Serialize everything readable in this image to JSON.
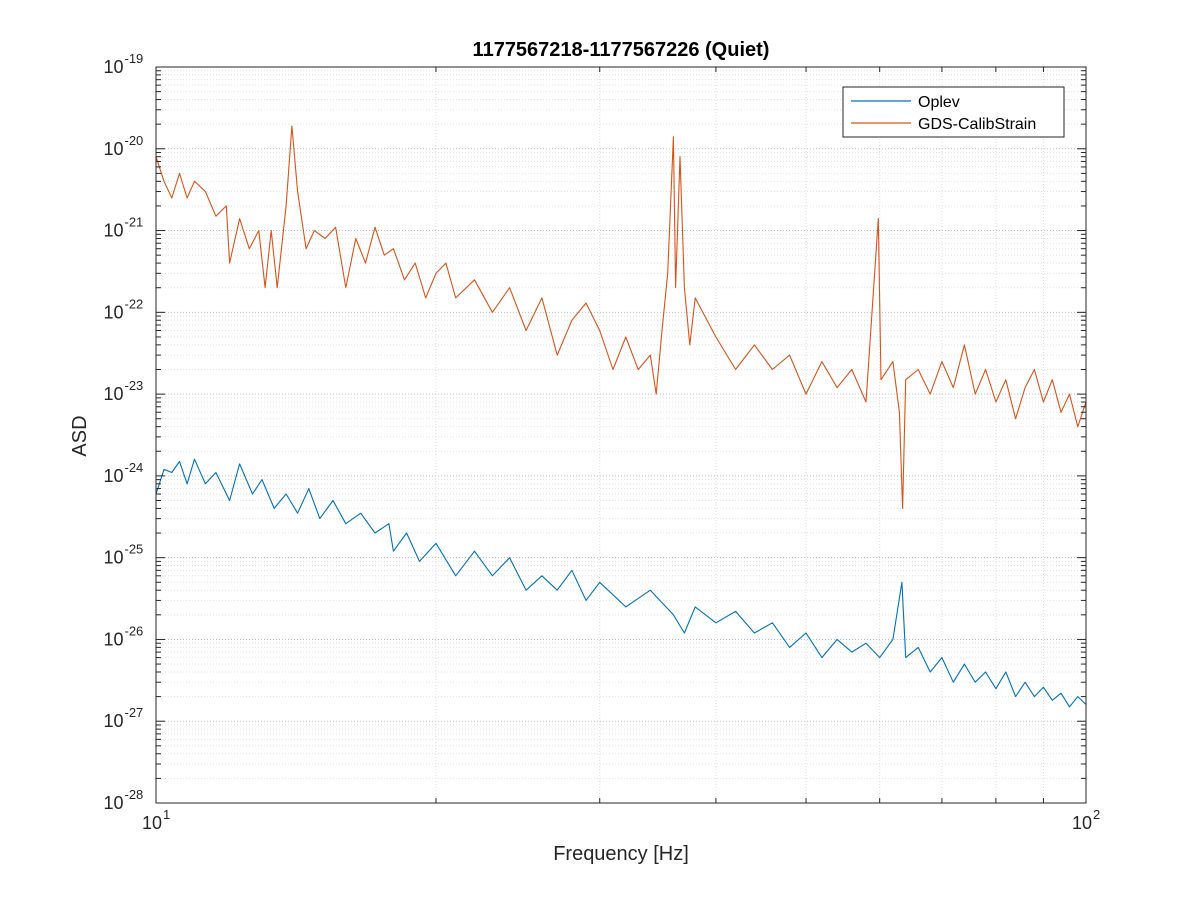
{
  "chart_data": {
    "type": "line",
    "title": "1177567218-1177567226 (Quiet)",
    "xlabel": "Frequency [Hz]",
    "ylabel": "ASD",
    "xscale": "log",
    "yscale": "log",
    "xlim": [
      10,
      100
    ],
    "ylim": [
      1e-28,
      1e-19
    ],
    "grid": true,
    "minor_grid": true,
    "legend_position": "top-right",
    "x_tick_labels": [
      {
        "base": "10",
        "exp": "1",
        "value": 10
      },
      {
        "base": "10",
        "exp": "2",
        "value": 100
      }
    ],
    "y_tick_labels": [
      {
        "base": "10",
        "exp": "-19",
        "value": -19
      },
      {
        "base": "10",
        "exp": "-20",
        "value": -20
      },
      {
        "base": "10",
        "exp": "-21",
        "value": -21
      },
      {
        "base": "10",
        "exp": "-22",
        "value": -22
      },
      {
        "base": "10",
        "exp": "-23",
        "value": -23
      },
      {
        "base": "10",
        "exp": "-24",
        "value": -24
      },
      {
        "base": "10",
        "exp": "-25",
        "value": -25
      },
      {
        "base": "10",
        "exp": "-26",
        "value": -26
      },
      {
        "base": "10",
        "exp": "-27",
        "value": -27
      },
      {
        "base": "10",
        "exp": "-28",
        "value": -28
      }
    ],
    "series": [
      {
        "name": "Oplev",
        "color": "#0072BD",
        "points": [
          [
            10,
            6e-25
          ],
          [
            10.2,
            1.2e-24
          ],
          [
            10.4,
            1.1e-24
          ],
          [
            10.6,
            1.5e-24
          ],
          [
            10.8,
            8e-25
          ],
          [
            11,
            1.6e-24
          ],
          [
            11.3,
            8e-25
          ],
          [
            11.6,
            1.1e-24
          ],
          [
            12,
            5e-25
          ],
          [
            12.3,
            1.4e-24
          ],
          [
            12.7,
            6e-25
          ],
          [
            13,
            9e-25
          ],
          [
            13.4,
            4e-25
          ],
          [
            13.8,
            6e-25
          ],
          [
            14.2,
            3.5e-25
          ],
          [
            14.6,
            7e-25
          ],
          [
            15,
            3e-25
          ],
          [
            15.5,
            5e-25
          ],
          [
            16,
            2.6e-25
          ],
          [
            16.6,
            3.5e-25
          ],
          [
            17.2,
            2e-25
          ],
          [
            17.8,
            2.6e-25
          ],
          [
            18,
            1.2e-25
          ],
          [
            18.6,
            2e-25
          ],
          [
            19.2,
            9e-26
          ],
          [
            20,
            1.5e-25
          ],
          [
            21,
            6e-26
          ],
          [
            22,
            1.2e-25
          ],
          [
            23,
            6e-26
          ],
          [
            24,
            1e-25
          ],
          [
            25,
            4e-26
          ],
          [
            26,
            6e-26
          ],
          [
            27,
            4e-26
          ],
          [
            28,
            7e-26
          ],
          [
            29,
            3e-26
          ],
          [
            30,
            5e-26
          ],
          [
            32,
            2.5e-26
          ],
          [
            34,
            4e-26
          ],
          [
            36,
            2e-26
          ],
          [
            37,
            1.2e-26
          ],
          [
            38,
            2.5e-26
          ],
          [
            40,
            1.6e-26
          ],
          [
            42,
            2.2e-26
          ],
          [
            44,
            1.2e-26
          ],
          [
            46,
            1.6e-26
          ],
          [
            48,
            8e-27
          ],
          [
            50,
            1.2e-26
          ],
          [
            52,
            6e-27
          ],
          [
            54,
            1e-26
          ],
          [
            56,
            7e-27
          ],
          [
            58,
            9e-27
          ],
          [
            60,
            6e-27
          ],
          [
            62,
            1e-26
          ],
          [
            63.4,
            5e-26
          ],
          [
            64,
            6e-27
          ],
          [
            66,
            8e-27
          ],
          [
            68,
            4e-27
          ],
          [
            70,
            6e-27
          ],
          [
            72,
            3e-27
          ],
          [
            74,
            5e-27
          ],
          [
            76,
            3e-27
          ],
          [
            78,
            4e-27
          ],
          [
            80,
            2.5e-27
          ],
          [
            82,
            4e-27
          ],
          [
            84,
            2e-27
          ],
          [
            86,
            3e-27
          ],
          [
            88,
            2e-27
          ],
          [
            90,
            2.6e-27
          ],
          [
            92,
            1.8e-27
          ],
          [
            94,
            2.2e-27
          ],
          [
            96,
            1.5e-27
          ],
          [
            98,
            2e-27
          ],
          [
            100,
            1.6e-27
          ]
        ]
      },
      {
        "name": "GDS-CalibStrain",
        "color": "#D95319",
        "points": [
          [
            10,
            8e-21
          ],
          [
            10.2,
            4e-21
          ],
          [
            10.4,
            2.5e-21
          ],
          [
            10.6,
            5e-21
          ],
          [
            10.8,
            2.5e-21
          ],
          [
            11,
            4e-21
          ],
          [
            11.3,
            3e-21
          ],
          [
            11.6,
            1.5e-21
          ],
          [
            11.9,
            2e-21
          ],
          [
            12,
            4e-22
          ],
          [
            12.3,
            1.4e-21
          ],
          [
            12.6,
            6e-22
          ],
          [
            12.9,
            1e-21
          ],
          [
            13.1,
            2e-22
          ],
          [
            13.3,
            1e-21
          ],
          [
            13.5,
            2e-22
          ],
          [
            13.8,
            2e-21
          ],
          [
            14,
            1.9e-20
          ],
          [
            14.2,
            3e-21
          ],
          [
            14.5,
            6e-22
          ],
          [
            14.8,
            1e-21
          ],
          [
            15.2,
            8e-22
          ],
          [
            15.6,
            1.1e-21
          ],
          [
            16,
            2e-22
          ],
          [
            16.4,
            8e-22
          ],
          [
            16.8,
            4e-22
          ],
          [
            17.2,
            1.1e-21
          ],
          [
            17.6,
            5e-22
          ],
          [
            18,
            6e-22
          ],
          [
            18.5,
            2.5e-22
          ],
          [
            19,
            4e-22
          ],
          [
            19.5,
            1.5e-22
          ],
          [
            20,
            3e-22
          ],
          [
            20.5,
            4e-22
          ],
          [
            21,
            1.5e-22
          ],
          [
            22,
            2.5e-22
          ],
          [
            23,
            1e-22
          ],
          [
            24,
            2e-22
          ],
          [
            25,
            6e-23
          ],
          [
            26,
            1.5e-22
          ],
          [
            27,
            3e-23
          ],
          [
            28,
            8e-23
          ],
          [
            29,
            1.3e-22
          ],
          [
            30,
            6e-23
          ],
          [
            31,
            2e-23
          ],
          [
            32,
            5e-23
          ],
          [
            33,
            2e-23
          ],
          [
            34,
            3e-23
          ],
          [
            34.5,
            1e-23
          ],
          [
            35,
            6e-23
          ],
          [
            35.5,
            3e-22
          ],
          [
            36,
            1.4e-20
          ],
          [
            36.2,
            2e-22
          ],
          [
            36.6,
            8e-21
          ],
          [
            37,
            2e-22
          ],
          [
            37.5,
            4e-23
          ],
          [
            38,
            1.5e-22
          ],
          [
            40,
            5e-23
          ],
          [
            42,
            2e-23
          ],
          [
            44,
            4e-23
          ],
          [
            46,
            2e-23
          ],
          [
            48,
            3e-23
          ],
          [
            50,
            1e-23
          ],
          [
            52,
            2.5e-23
          ],
          [
            54,
            1.2e-23
          ],
          [
            56,
            2e-23
          ],
          [
            58,
            8e-24
          ],
          [
            59.8,
            1.4e-21
          ],
          [
            60.2,
            1.5e-23
          ],
          [
            62,
            2.5e-23
          ],
          [
            63,
            6e-24
          ],
          [
            63.5,
            4e-25
          ],
          [
            64,
            1.5e-23
          ],
          [
            66,
            2e-23
          ],
          [
            68,
            1e-23
          ],
          [
            70,
            2.5e-23
          ],
          [
            72,
            1.2e-23
          ],
          [
            74,
            4e-23
          ],
          [
            76,
            1e-23
          ],
          [
            78,
            2e-23
          ],
          [
            80,
            8e-24
          ],
          [
            82,
            1.5e-23
          ],
          [
            84,
            5e-24
          ],
          [
            86,
            1.2e-23
          ],
          [
            88,
            2e-23
          ],
          [
            90,
            8e-24
          ],
          [
            92,
            1.5e-23
          ],
          [
            94,
            6e-24
          ],
          [
            96,
            1e-23
          ],
          [
            98,
            4e-24
          ],
          [
            100,
            8e-24
          ]
        ]
      }
    ]
  }
}
